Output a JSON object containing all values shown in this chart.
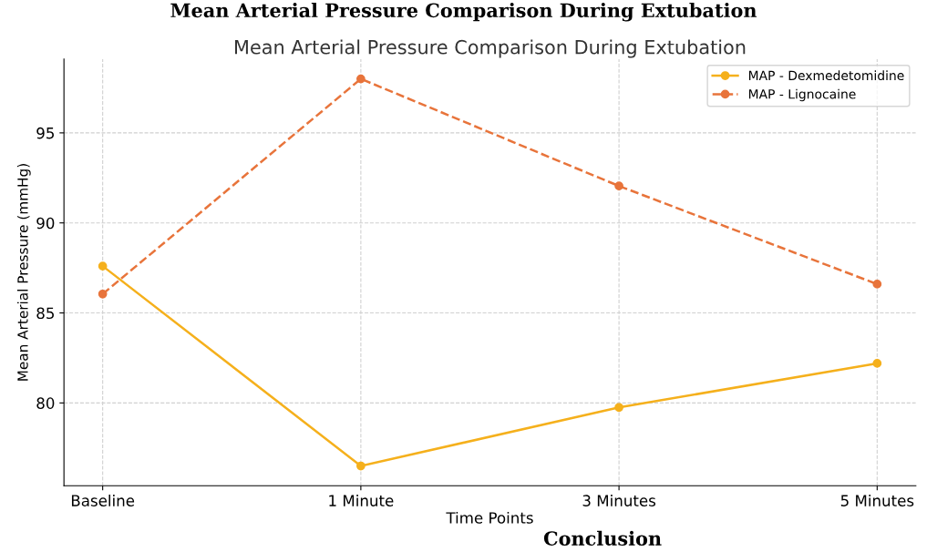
{
  "chart_data": {
    "type": "line",
    "title": "Mean Arterial Pressure Comparison During Extubation",
    "subtitle": "Mean Arterial Pressure Comparison During Extubation",
    "xlabel": "Time Points",
    "ylabel": "Mean Arterial Pressure (mmHg)",
    "categories": [
      "Baseline",
      "1 Minute",
      "3 Minutes",
      "5 Minutes"
    ],
    "series": [
      {
        "name": "MAP - Dexmedetomidine",
        "color": "#f5b01c",
        "values": [
          87.6,
          76.5,
          79.75,
          82.2
        ],
        "line_style": "solid"
      },
      {
        "name": "MAP - Lignocaine",
        "color": "#e8743b",
        "values": [
          86.05,
          98.0,
          92.05,
          86.6
        ],
        "line_style": "dashed"
      }
    ],
    "ylim": [
      75.4,
      99.1
    ],
    "yticks": [
      80,
      85,
      90,
      95
    ],
    "grid": true,
    "legend": "top right",
    "marker": "circle",
    "annotations": [
      "Conclusion"
    ]
  }
}
